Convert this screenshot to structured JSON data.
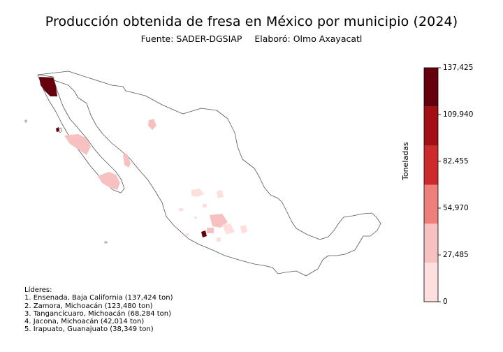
{
  "title": "Producción obtenida de fresa en México por municipio (2024)",
  "subtitle": {
    "source": "Fuente: SADER-DGSIAP",
    "author": "Elaboró: Olmo Axayacatl"
  },
  "colorbar": {
    "label": "Toneladas",
    "ticks": [
      "0",
      "27,485",
      "54,970",
      "82,455",
      "109,940",
      "137,425"
    ],
    "colors": [
      "#fde0dd",
      "#f8c1c1",
      "#ef7f7a",
      "#cd2b2b",
      "#a30f14",
      "#67000d"
    ]
  },
  "leaders": {
    "heading": "Líderes:",
    "items": [
      "1. Ensenada, Baja California (137,424 ton)",
      "2. Zamora, Michoacán (123,480 ton)",
      "3. Tangancícuaro, Michoacán (68,284 ton)",
      "4. Jacona, Michoacán (42,014 ton)",
      "5. Irapuato, Guanajuato (38,349 ton)"
    ]
  }
}
